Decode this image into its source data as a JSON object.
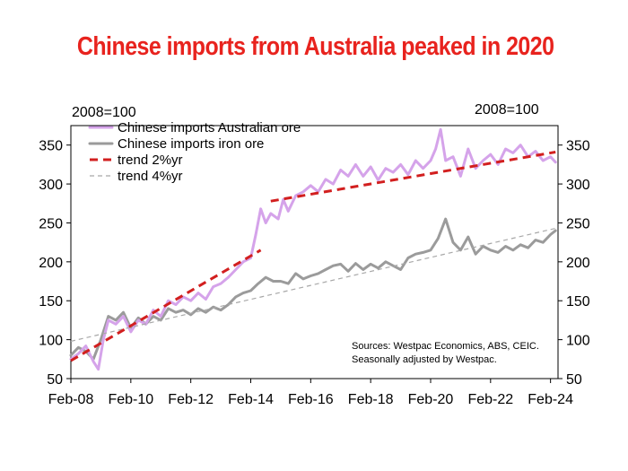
{
  "chart_data": {
    "type": "line",
    "title": "Chinese imports from Australia peaked in 2020",
    "left_axis_unit": "2008=100",
    "right_axis_unit": "2008=100",
    "ylim": [
      50,
      375
    ],
    "y_ticks": [
      50,
      100,
      150,
      200,
      250,
      300,
      350
    ],
    "xlim": [
      "2008-02",
      "2024-05"
    ],
    "x_tick_labels": [
      "Feb-08",
      "Feb-10",
      "Feb-12",
      "Feb-14",
      "Feb-16",
      "Feb-18",
      "Feb-20",
      "Feb-22",
      "Feb-24"
    ],
    "x_tick_values": [
      "2008-02",
      "2010-02",
      "2012-02",
      "2014-02",
      "2016-02",
      "2018-02",
      "2020-02",
      "2022-02",
      "2024-02"
    ],
    "legend_position": "top-left",
    "notes": [
      "Sources: Westpac Economics, ABS, CEIC.",
      "Seasonally adjusted by Westpac."
    ],
    "colors": {
      "title": "#e8231e",
      "australian_ore": "#d5a3ea",
      "iron_ore": "#9b9b9b",
      "trend2": "#d21f1f",
      "trend4": "#a8a8a8"
    },
    "series": [
      {
        "name": "Chinese imports Australian ore",
        "style": "solid",
        "color": "#d5a3ea",
        "points": [
          [
            "2008-02",
            75
          ],
          [
            "2008-05",
            82
          ],
          [
            "2008-08",
            92
          ],
          [
            "2008-11",
            72
          ],
          [
            "2009-01",
            62
          ],
          [
            "2009-03",
            100
          ],
          [
            "2009-05",
            125
          ],
          [
            "2009-08",
            120
          ],
          [
            "2009-11",
            130
          ],
          [
            "2010-02",
            110
          ],
          [
            "2010-05",
            125
          ],
          [
            "2010-08",
            120
          ],
          [
            "2010-11",
            138
          ],
          [
            "2011-02",
            130
          ],
          [
            "2011-05",
            150
          ],
          [
            "2011-08",
            145
          ],
          [
            "2011-11",
            155
          ],
          [
            "2012-02",
            150
          ],
          [
            "2012-05",
            160
          ],
          [
            "2012-08",
            152
          ],
          [
            "2012-11",
            168
          ],
          [
            "2013-02",
            172
          ],
          [
            "2013-05",
            180
          ],
          [
            "2013-08",
            190
          ],
          [
            "2013-11",
            200
          ],
          [
            "2014-02",
            205
          ],
          [
            "2014-04",
            235
          ],
          [
            "2014-06",
            268
          ],
          [
            "2014-08",
            250
          ],
          [
            "2014-10",
            262
          ],
          [
            "2015-01",
            255
          ],
          [
            "2015-03",
            280
          ],
          [
            "2015-05",
            265
          ],
          [
            "2015-08",
            285
          ],
          [
            "2015-11",
            290
          ],
          [
            "2016-02",
            298
          ],
          [
            "2016-05",
            290
          ],
          [
            "2016-08",
            306
          ],
          [
            "2016-11",
            300
          ],
          [
            "2017-02",
            318
          ],
          [
            "2017-05",
            310
          ],
          [
            "2017-08",
            325
          ],
          [
            "2017-11",
            310
          ],
          [
            "2018-02",
            322
          ],
          [
            "2018-05",
            305
          ],
          [
            "2018-08",
            320
          ],
          [
            "2018-11",
            315
          ],
          [
            "2019-02",
            325
          ],
          [
            "2019-05",
            312
          ],
          [
            "2019-08",
            330
          ],
          [
            "2019-11",
            320
          ],
          [
            "2020-02",
            330
          ],
          [
            "2020-04",
            345
          ],
          [
            "2020-06",
            370
          ],
          [
            "2020-08",
            330
          ],
          [
            "2020-11",
            335
          ],
          [
            "2021-02",
            310
          ],
          [
            "2021-05",
            345
          ],
          [
            "2021-08",
            320
          ],
          [
            "2021-11",
            330
          ],
          [
            "2022-02",
            338
          ],
          [
            "2022-05",
            325
          ],
          [
            "2022-08",
            345
          ],
          [
            "2022-11",
            340
          ],
          [
            "2023-02",
            350
          ],
          [
            "2023-05",
            335
          ],
          [
            "2023-08",
            342
          ],
          [
            "2023-11",
            330
          ],
          [
            "2024-02",
            335
          ],
          [
            "2024-04",
            328
          ]
        ]
      },
      {
        "name": "Chinese imports iron ore",
        "style": "solid",
        "color": "#9b9b9b",
        "points": [
          [
            "2008-02",
            80
          ],
          [
            "2008-05",
            90
          ],
          [
            "2008-08",
            85
          ],
          [
            "2008-11",
            75
          ],
          [
            "2009-02",
            100
          ],
          [
            "2009-05",
            130
          ],
          [
            "2009-08",
            125
          ],
          [
            "2009-11",
            135
          ],
          [
            "2010-02",
            115
          ],
          [
            "2010-05",
            128
          ],
          [
            "2010-08",
            120
          ],
          [
            "2010-11",
            130
          ],
          [
            "2011-02",
            125
          ],
          [
            "2011-05",
            140
          ],
          [
            "2011-08",
            135
          ],
          [
            "2011-11",
            138
          ],
          [
            "2012-02",
            132
          ],
          [
            "2012-05",
            140
          ],
          [
            "2012-08",
            135
          ],
          [
            "2012-11",
            142
          ],
          [
            "2013-02",
            138
          ],
          [
            "2013-05",
            145
          ],
          [
            "2013-08",
            155
          ],
          [
            "2013-11",
            160
          ],
          [
            "2014-02",
            163
          ],
          [
            "2014-05",
            172
          ],
          [
            "2014-08",
            180
          ],
          [
            "2014-11",
            175
          ],
          [
            "2015-02",
            175
          ],
          [
            "2015-05",
            172
          ],
          [
            "2015-08",
            185
          ],
          [
            "2015-11",
            178
          ],
          [
            "2016-02",
            182
          ],
          [
            "2016-05",
            185
          ],
          [
            "2016-08",
            190
          ],
          [
            "2016-11",
            195
          ],
          [
            "2017-02",
            197
          ],
          [
            "2017-05",
            188
          ],
          [
            "2017-08",
            198
          ],
          [
            "2017-11",
            190
          ],
          [
            "2018-02",
            197
          ],
          [
            "2018-05",
            192
          ],
          [
            "2018-08",
            200
          ],
          [
            "2018-11",
            195
          ],
          [
            "2019-02",
            190
          ],
          [
            "2019-05",
            205
          ],
          [
            "2019-08",
            210
          ],
          [
            "2019-11",
            212
          ],
          [
            "2020-02",
            215
          ],
          [
            "2020-05",
            230
          ],
          [
            "2020-08",
            255
          ],
          [
            "2020-11",
            225
          ],
          [
            "2021-02",
            215
          ],
          [
            "2021-05",
            232
          ],
          [
            "2021-08",
            210
          ],
          [
            "2021-11",
            220
          ],
          [
            "2022-02",
            215
          ],
          [
            "2022-05",
            212
          ],
          [
            "2022-08",
            220
          ],
          [
            "2022-11",
            215
          ],
          [
            "2023-02",
            222
          ],
          [
            "2023-05",
            218
          ],
          [
            "2023-08",
            228
          ],
          [
            "2023-11",
            225
          ],
          [
            "2024-02",
            235
          ],
          [
            "2024-04",
            240
          ]
        ]
      },
      {
        "name": "trend 2%yr",
        "style": "dashed",
        "color": "#d21f1f",
        "points": [
          [
            "2008-02",
            73
          ],
          [
            "2014-06",
            215
          ],
          [
            "2014-10",
            278
          ],
          [
            "2024-04",
            341
          ]
        ]
      },
      {
        "name": "trend 4%yr",
        "style": "dashed-thin",
        "color": "#a8a8a8",
        "points": [
          [
            "2008-02",
            98
          ],
          [
            "2024-04",
            243
          ]
        ]
      }
    ]
  }
}
